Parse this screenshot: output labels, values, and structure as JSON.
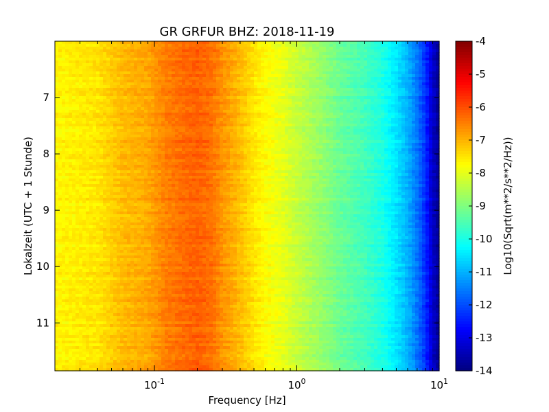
{
  "chart_data": {
    "type": "heatmap",
    "title": "GR GRFUR BHZ: 2018-11-19",
    "xlabel": "Frequency [Hz]",
    "ylabel": "Lokalzeit (UTC + 1 Stunde)",
    "xscale": "log",
    "xlim": [
      0.02,
      10
    ],
    "ylim": [
      11.85,
      6.0
    ],
    "y_inverted": true,
    "x_ticks": [
      {
        "value": 0.1,
        "base": "10",
        "exp": "-1"
      },
      {
        "value": 1,
        "base": "10",
        "exp": "0"
      },
      {
        "value": 10,
        "base": "10",
        "exp": "1"
      }
    ],
    "y_ticks": [
      "7",
      "8",
      "9",
      "10",
      "11"
    ],
    "y_tick_values": [
      7,
      8,
      9,
      10,
      11
    ],
    "colorbar": {
      "label": "Log10(Sqrt(m**2/s**2/Hz))",
      "range": [
        -14,
        -4
      ],
      "ticks": [
        "-4",
        "-5",
        "-6",
        "-7",
        "-8",
        "-9",
        "-10",
        "-11",
        "-12",
        "-13",
        "-14"
      ],
      "tick_values": [
        -4,
        -5,
        -6,
        -7,
        -8,
        -9,
        -10,
        -11,
        -12,
        -13,
        -14
      ],
      "colormap": "jet"
    },
    "spectrum_profile": {
      "frequency_hz": [
        0.02,
        0.04,
        0.06,
        0.09,
        0.12,
        0.16,
        0.2,
        0.25,
        0.3,
        0.4,
        0.5,
        0.6,
        0.8,
        1.0,
        1.5,
        2.0,
        3.0,
        4.0,
        5.0,
        6.0,
        7.0,
        8.0,
        9.0,
        10.0
      ],
      "log10_amplitude": [
        -7.7,
        -7.5,
        -7.1,
        -6.9,
        -6.5,
        -6.3,
        -6.2,
        -6.35,
        -6.7,
        -7.1,
        -7.5,
        -7.75,
        -8.0,
        -8.3,
        -8.8,
        -9.2,
        -9.6,
        -10.0,
        -10.5,
        -11.0,
        -11.6,
        -12.3,
        -13.3,
        -13.8
      ]
    }
  }
}
